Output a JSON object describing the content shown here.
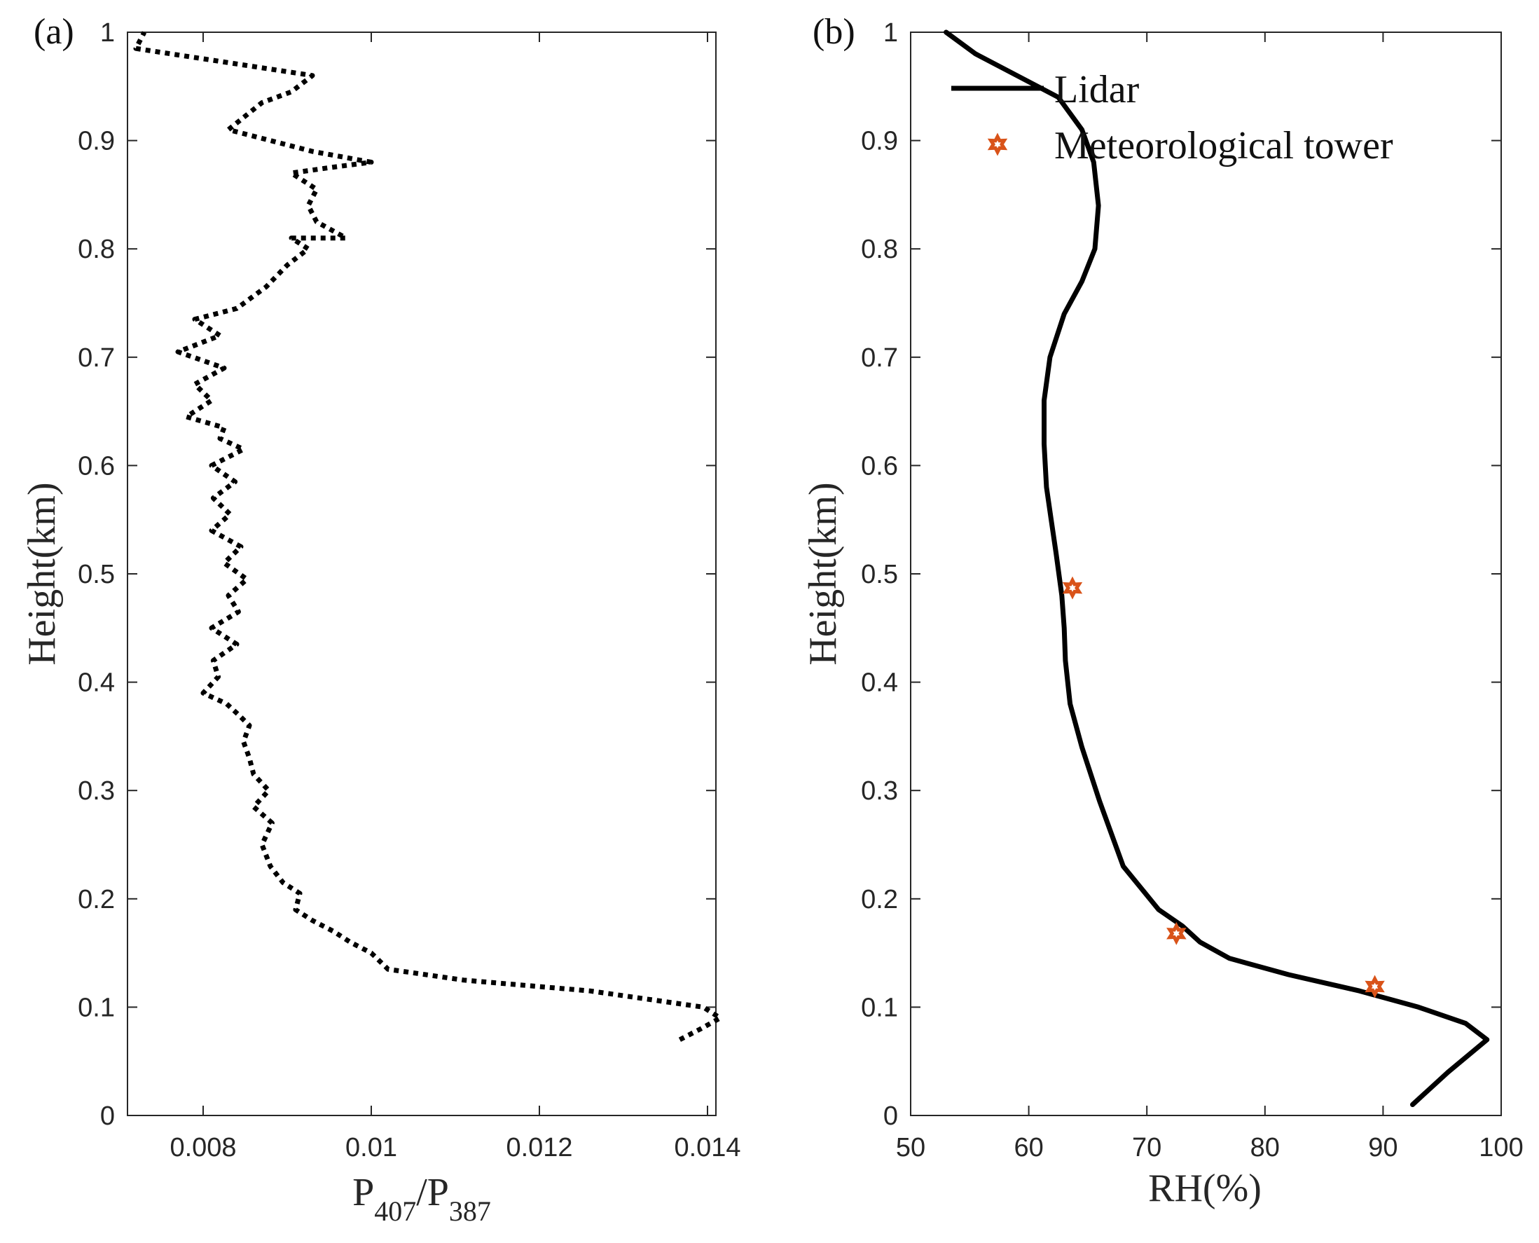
{
  "chart_data": [
    {
      "id": "a",
      "panel_label": "(a)",
      "type": "line",
      "xlabel_main": "P",
      "xlabel_sub1": "407",
      "xlabel_sep": "/P",
      "xlabel_sub2": "387",
      "ylabel": "Height(km)",
      "xlim": [
        0.0071,
        0.0141
      ],
      "ylim": [
        0,
        1
      ],
      "xticks": [
        0.008,
        0.01,
        0.012,
        0.014
      ],
      "xtick_labels": [
        "0.008",
        "0.01",
        "0.012",
        "0.014"
      ],
      "yticks": [
        0,
        0.1,
        0.2,
        0.3,
        0.4,
        0.5,
        0.6,
        0.7,
        0.8,
        0.9,
        1
      ],
      "ytick_labels": [
        "0",
        "0.1",
        "0.2",
        "0.3",
        "0.4",
        "0.5",
        "0.6",
        "0.7",
        "0.8",
        "0.9",
        "1"
      ],
      "series": [
        {
          "name": "P407/P387",
          "style": "dotted",
          "color": "#000000",
          "x": [
            0.01367,
            0.01392,
            0.01415,
            0.01395,
            0.0126,
            0.0111,
            0.0102,
            0.01,
            0.00975,
            0.00955,
            0.0093,
            0.0091,
            0.00915,
            0.00895,
            0.0088,
            0.0087,
            0.00882,
            0.0086,
            0.00878,
            0.0086,
            0.00855,
            0.00848,
            0.00855,
            0.00842,
            0.00828,
            0.008,
            0.00818,
            0.00812,
            0.0084,
            0.0081,
            0.00842,
            0.0083,
            0.00852,
            0.00825,
            0.00845,
            0.0081,
            0.00832,
            0.00812,
            0.00838,
            0.0081,
            0.00848,
            0.0082,
            0.00825,
            0.0078,
            0.0081,
            0.0079,
            0.00825,
            0.0077,
            0.0082,
            0.0079,
            0.0084,
            0.00875,
            0.009,
            0.00925,
            0.00905,
            0.0097,
            0.00935,
            0.00925,
            0.00935,
            0.00905,
            0.0095,
            0.01,
            0.0093,
            0.0083,
            0.0087,
            0.00905,
            0.0093,
            0.0072,
            0.0073
          ],
          "y": [
            0.07,
            0.08,
            0.09,
            0.1,
            0.115,
            0.125,
            0.135,
            0.15,
            0.16,
            0.17,
            0.18,
            0.19,
            0.205,
            0.215,
            0.23,
            0.25,
            0.27,
            0.285,
            0.3,
            0.315,
            0.33,
            0.345,
            0.36,
            0.37,
            0.38,
            0.39,
            0.405,
            0.42,
            0.435,
            0.45,
            0.465,
            0.48,
            0.495,
            0.51,
            0.525,
            0.54,
            0.555,
            0.57,
            0.585,
            0.6,
            0.615,
            0.625,
            0.635,
            0.645,
            0.66,
            0.675,
            0.69,
            0.705,
            0.72,
            0.735,
            0.745,
            0.765,
            0.785,
            0.8,
            0.81,
            0.81,
            0.825,
            0.84,
            0.855,
            0.87,
            0.875,
            0.88,
            0.89,
            0.91,
            0.935,
            0.945,
            0.96,
            0.985,
            1.0
          ]
        }
      ]
    },
    {
      "id": "b",
      "panel_label": "(b)",
      "type": "line",
      "xlabel": "RH(%)",
      "ylabel": "Height(km)",
      "xlim": [
        50,
        100
      ],
      "ylim": [
        0,
        1
      ],
      "xticks": [
        50,
        60,
        70,
        80,
        90,
        100
      ],
      "xtick_labels": [
        "50",
        "60",
        "70",
        "80",
        "90",
        "100"
      ],
      "yticks": [
        0,
        0.1,
        0.2,
        0.3,
        0.4,
        0.5,
        0.6,
        0.7,
        0.8,
        0.9,
        1
      ],
      "ytick_labels": [
        "0",
        "0.1",
        "0.2",
        "0.3",
        "0.4",
        "0.5",
        "0.6",
        "0.7",
        "0.8",
        "0.9",
        "1"
      ],
      "legend_position": "top-left",
      "series": [
        {
          "name": "Lidar",
          "style": "solid",
          "color": "#000000",
          "x": [
            92.5,
            95.5,
            98.8,
            97.0,
            93.0,
            88.0,
            82.0,
            77.0,
            74.5,
            73.0,
            71.0,
            69.5,
            68.0,
            67.0,
            66.0,
            64.5,
            63.5,
            63.1,
            63.0,
            62.8,
            62.3,
            61.9,
            61.5,
            61.3,
            61.3,
            61.8,
            63.0,
            64.5,
            65.6,
            65.9,
            65.5,
            64.5,
            62.5,
            59.0,
            55.5,
            53.0
          ],
          "y": [
            0.01,
            0.04,
            0.07,
            0.085,
            0.1,
            0.115,
            0.13,
            0.145,
            0.16,
            0.175,
            0.19,
            0.21,
            0.23,
            0.26,
            0.29,
            0.34,
            0.38,
            0.42,
            0.45,
            0.48,
            0.52,
            0.55,
            0.58,
            0.62,
            0.66,
            0.7,
            0.74,
            0.77,
            0.8,
            0.84,
            0.88,
            0.91,
            0.94,
            0.96,
            0.98,
            1.0
          ]
        },
        {
          "name": "Meteorological tower",
          "style": "marker",
          "marker": "hexagram",
          "color": "#d95319",
          "x": [
            63.7,
            72.5,
            89.3
          ],
          "y": [
            0.487,
            0.168,
            0.119
          ]
        }
      ]
    }
  ]
}
